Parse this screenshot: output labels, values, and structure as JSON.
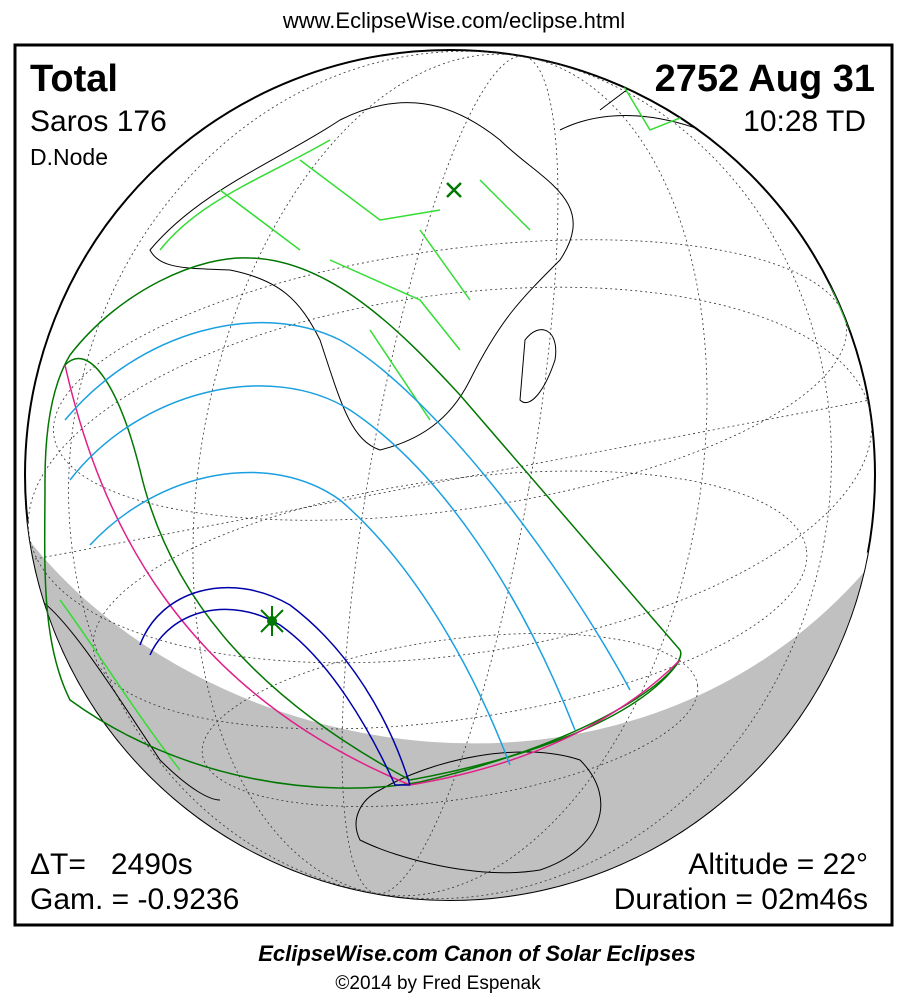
{
  "header": {
    "url": "www.EclipseWise.com/eclipse.html"
  },
  "eclipse": {
    "type": "Total",
    "date": "2752 Aug 31",
    "saros": "Saros 176",
    "time": "10:28 TD",
    "node": "D.Node",
    "delta_t": "ΔT=   2490s",
    "gamma": "Gam. = -0.9236",
    "altitude": "Altitude = 22°",
    "duration": "Duration = 02m46s"
  },
  "footer": {
    "title": "EclipseWise.com Canon of Solar Eclipses",
    "copyright": "©2014 by Fred Espenak"
  }
}
